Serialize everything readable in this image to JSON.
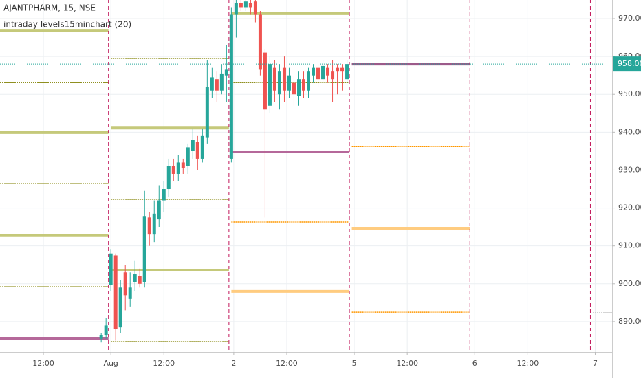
{
  "chart_data": {
    "type": "candlestick",
    "title": "AJANTPHARM, 15, NSE",
    "subtitle": "intraday levels15minchart (20)",
    "up_color": "#26a69a",
    "down_color": "#ef5350",
    "xlim": [
      0,
      127
    ],
    "xticks": [
      {
        "value": 9,
        "label": "12:00"
      },
      {
        "value": 23,
        "label": "Aug"
      },
      {
        "value": 34,
        "label": "12:00"
      },
      {
        "value": 48.5,
        "label": "2"
      },
      {
        "value": 59.5,
        "label": "12:00"
      },
      {
        "value": 73.5,
        "label": "5"
      },
      {
        "value": 84.5,
        "label": "12:00"
      },
      {
        "value": 98.5,
        "label": "6"
      },
      {
        "value": 109.5,
        "label": "12:00"
      },
      {
        "value": 123.5,
        "label": "7"
      }
    ],
    "ylim": [
      882,
      974.9
    ],
    "yticks": [
      {
        "value": 890,
        "label": "890.00"
      },
      {
        "value": 900,
        "label": "900.00"
      },
      {
        "value": 910,
        "label": "910.00"
      },
      {
        "value": 920,
        "label": "920.00"
      },
      {
        "value": 930,
        "label": "930.00"
      },
      {
        "value": 940,
        "label": "940.00"
      },
      {
        "value": 950,
        "label": "950.00"
      },
      {
        "value": 960,
        "label": "960.00"
      },
      {
        "value": 970,
        "label": "970.00"
      }
    ],
    "grid": true,
    "day_breaks": [
      22.5,
      47.5,
      72.5,
      97.5,
      122.5
    ],
    "day_break_color": "#c2185b",
    "last_price": {
      "value": 958,
      "label": "958.00"
    },
    "last_price_color": "#26a69a",
    "candles": {
      "x": [
        21,
        22,
        23,
        24,
        25,
        26,
        27,
        28,
        29,
        30,
        31,
        32,
        33,
        34,
        35,
        36,
        37,
        38,
        39,
        40,
        41,
        42,
        43,
        44,
        45,
        46,
        47,
        48,
        49,
        50,
        51,
        52,
        53,
        54,
        55,
        56,
        57,
        58,
        59,
        60,
        61,
        62,
        63,
        64,
        65,
        66,
        67,
        68,
        69,
        70,
        71,
        72
      ],
      "open": [
        885.5,
        886.5,
        899.6,
        907.5,
        888.5,
        903,
        896,
        900.5,
        902,
        900.5,
        917.5,
        913,
        917,
        922,
        925,
        931,
        929,
        932,
        931,
        935,
        937.5,
        933,
        938.5,
        951,
        954,
        951,
        955,
        933,
        971,
        974,
        973,
        974,
        974.5,
        971,
        961,
        947,
        957,
        950,
        957,
        951,
        953,
        949.5,
        954,
        951,
        955,
        957,
        954,
        957,
        956,
        957,
        957,
        954
      ],
      "high": [
        887,
        891,
        909,
        908,
        901,
        905,
        903,
        906,
        904,
        924.5,
        919,
        922,
        926,
        927,
        933,
        933,
        934,
        933,
        937,
        941,
        939,
        941,
        959,
        957,
        956,
        958,
        963,
        973,
        974.9,
        974.9,
        974.9,
        974.9,
        974.9,
        972,
        962,
        960,
        959,
        958,
        960,
        957,
        955,
        956,
        956,
        957,
        958,
        958,
        959,
        958,
        959,
        958,
        958,
        959
      ],
      "low": [
        884.5,
        885.5,
        898,
        885,
        887,
        893,
        894,
        898,
        899,
        899,
        910,
        911,
        915,
        919,
        923,
        927,
        927,
        929,
        929,
        933,
        930,
        932,
        937,
        949,
        948,
        950,
        948,
        932,
        965,
        972,
        972,
        971,
        969,
        955,
        917.5,
        945,
        948,
        946,
        948,
        949,
        947,
        947,
        949,
        949,
        953,
        952,
        953,
        953,
        948,
        950,
        951,
        953
      ],
      "close": [
        886.5,
        889,
        908,
        888,
        899,
        897,
        899,
        902.5,
        900,
        917.7,
        913,
        918.5,
        922,
        925,
        931,
        929,
        932,
        930.5,
        936,
        938,
        933,
        939,
        952,
        954.5,
        951,
        955.5,
        956.5,
        971,
        974,
        973,
        974.5,
        973,
        971,
        956.5,
        946,
        958,
        951,
        956,
        951,
        955,
        950,
        954,
        951,
        956,
        957,
        954,
        957.5,
        955,
        954,
        956,
        956,
        958
      ]
    },
    "levels": [
      {
        "x0": 0,
        "x1": 22.5,
        "value": 966.9,
        "color": "#c5c97a",
        "thick": true
      },
      {
        "x0": 0,
        "x1": 22.5,
        "value": 953.1,
        "color": "#808000",
        "thick": false
      },
      {
        "x0": 0,
        "x1": 22.5,
        "value": 939.9,
        "color": "#c5c97a",
        "thick": true
      },
      {
        "x0": 0,
        "x1": 22.5,
        "value": 926.4,
        "color": "#808000",
        "thick": false
      },
      {
        "x0": 0,
        "x1": 22.5,
        "value": 912.7,
        "color": "#c5c97a",
        "thick": true
      },
      {
        "x0": 0,
        "x1": 22.5,
        "value": 899.2,
        "color": "#808000",
        "thick": false
      },
      {
        "x0": 0,
        "x1": 22.5,
        "value": 885.6,
        "color": "#b5689a",
        "thick": true
      },
      {
        "x0": 23,
        "x1": 47.5,
        "value": 959.5,
        "color": "#808000",
        "thick": false
      },
      {
        "x0": 23,
        "x1": 47.5,
        "value": 941.1,
        "color": "#c5c97a",
        "thick": true
      },
      {
        "x0": 23,
        "x1": 47.5,
        "value": 922.3,
        "color": "#808000",
        "thick": false
      },
      {
        "x0": 23,
        "x1": 47.5,
        "value": 903.6,
        "color": "#c5c97a",
        "thick": true
      },
      {
        "x0": 23,
        "x1": 47.5,
        "value": 884.7,
        "color": "#808000",
        "thick": false
      },
      {
        "x0": 48,
        "x1": 72.5,
        "value": 971.3,
        "color": "#c5c97a",
        "thick": true
      },
      {
        "x0": 48,
        "x1": 72.5,
        "value": 953.1,
        "color": "#808000",
        "thick": false
      },
      {
        "x0": 48,
        "x1": 72.5,
        "value": 934.8,
        "color": "#b5689a",
        "thick": true
      },
      {
        "x0": 48,
        "x1": 72.5,
        "value": 916.3,
        "color": "#ff9800",
        "thick": false
      },
      {
        "x0": 48,
        "x1": 72.5,
        "value": 898,
        "color": "#ffcc80",
        "thick": true
      },
      {
        "x0": 73,
        "x1": 97.5,
        "value": 958,
        "color": "#9c5a8a",
        "thick": true
      },
      {
        "x0": 73,
        "x1": 97.5,
        "value": 936.2,
        "color": "#ff9800",
        "thick": false
      },
      {
        "x0": 73,
        "x1": 97.5,
        "value": 914.5,
        "color": "#ffcc80",
        "thick": true
      },
      {
        "x0": 73,
        "x1": 97.5,
        "value": 892.5,
        "color": "#ff9800",
        "thick": false
      },
      {
        "x0": 123,
        "x1": 127,
        "value": 892.3,
        "color": "#aaaaaa",
        "thick": false
      }
    ]
  }
}
